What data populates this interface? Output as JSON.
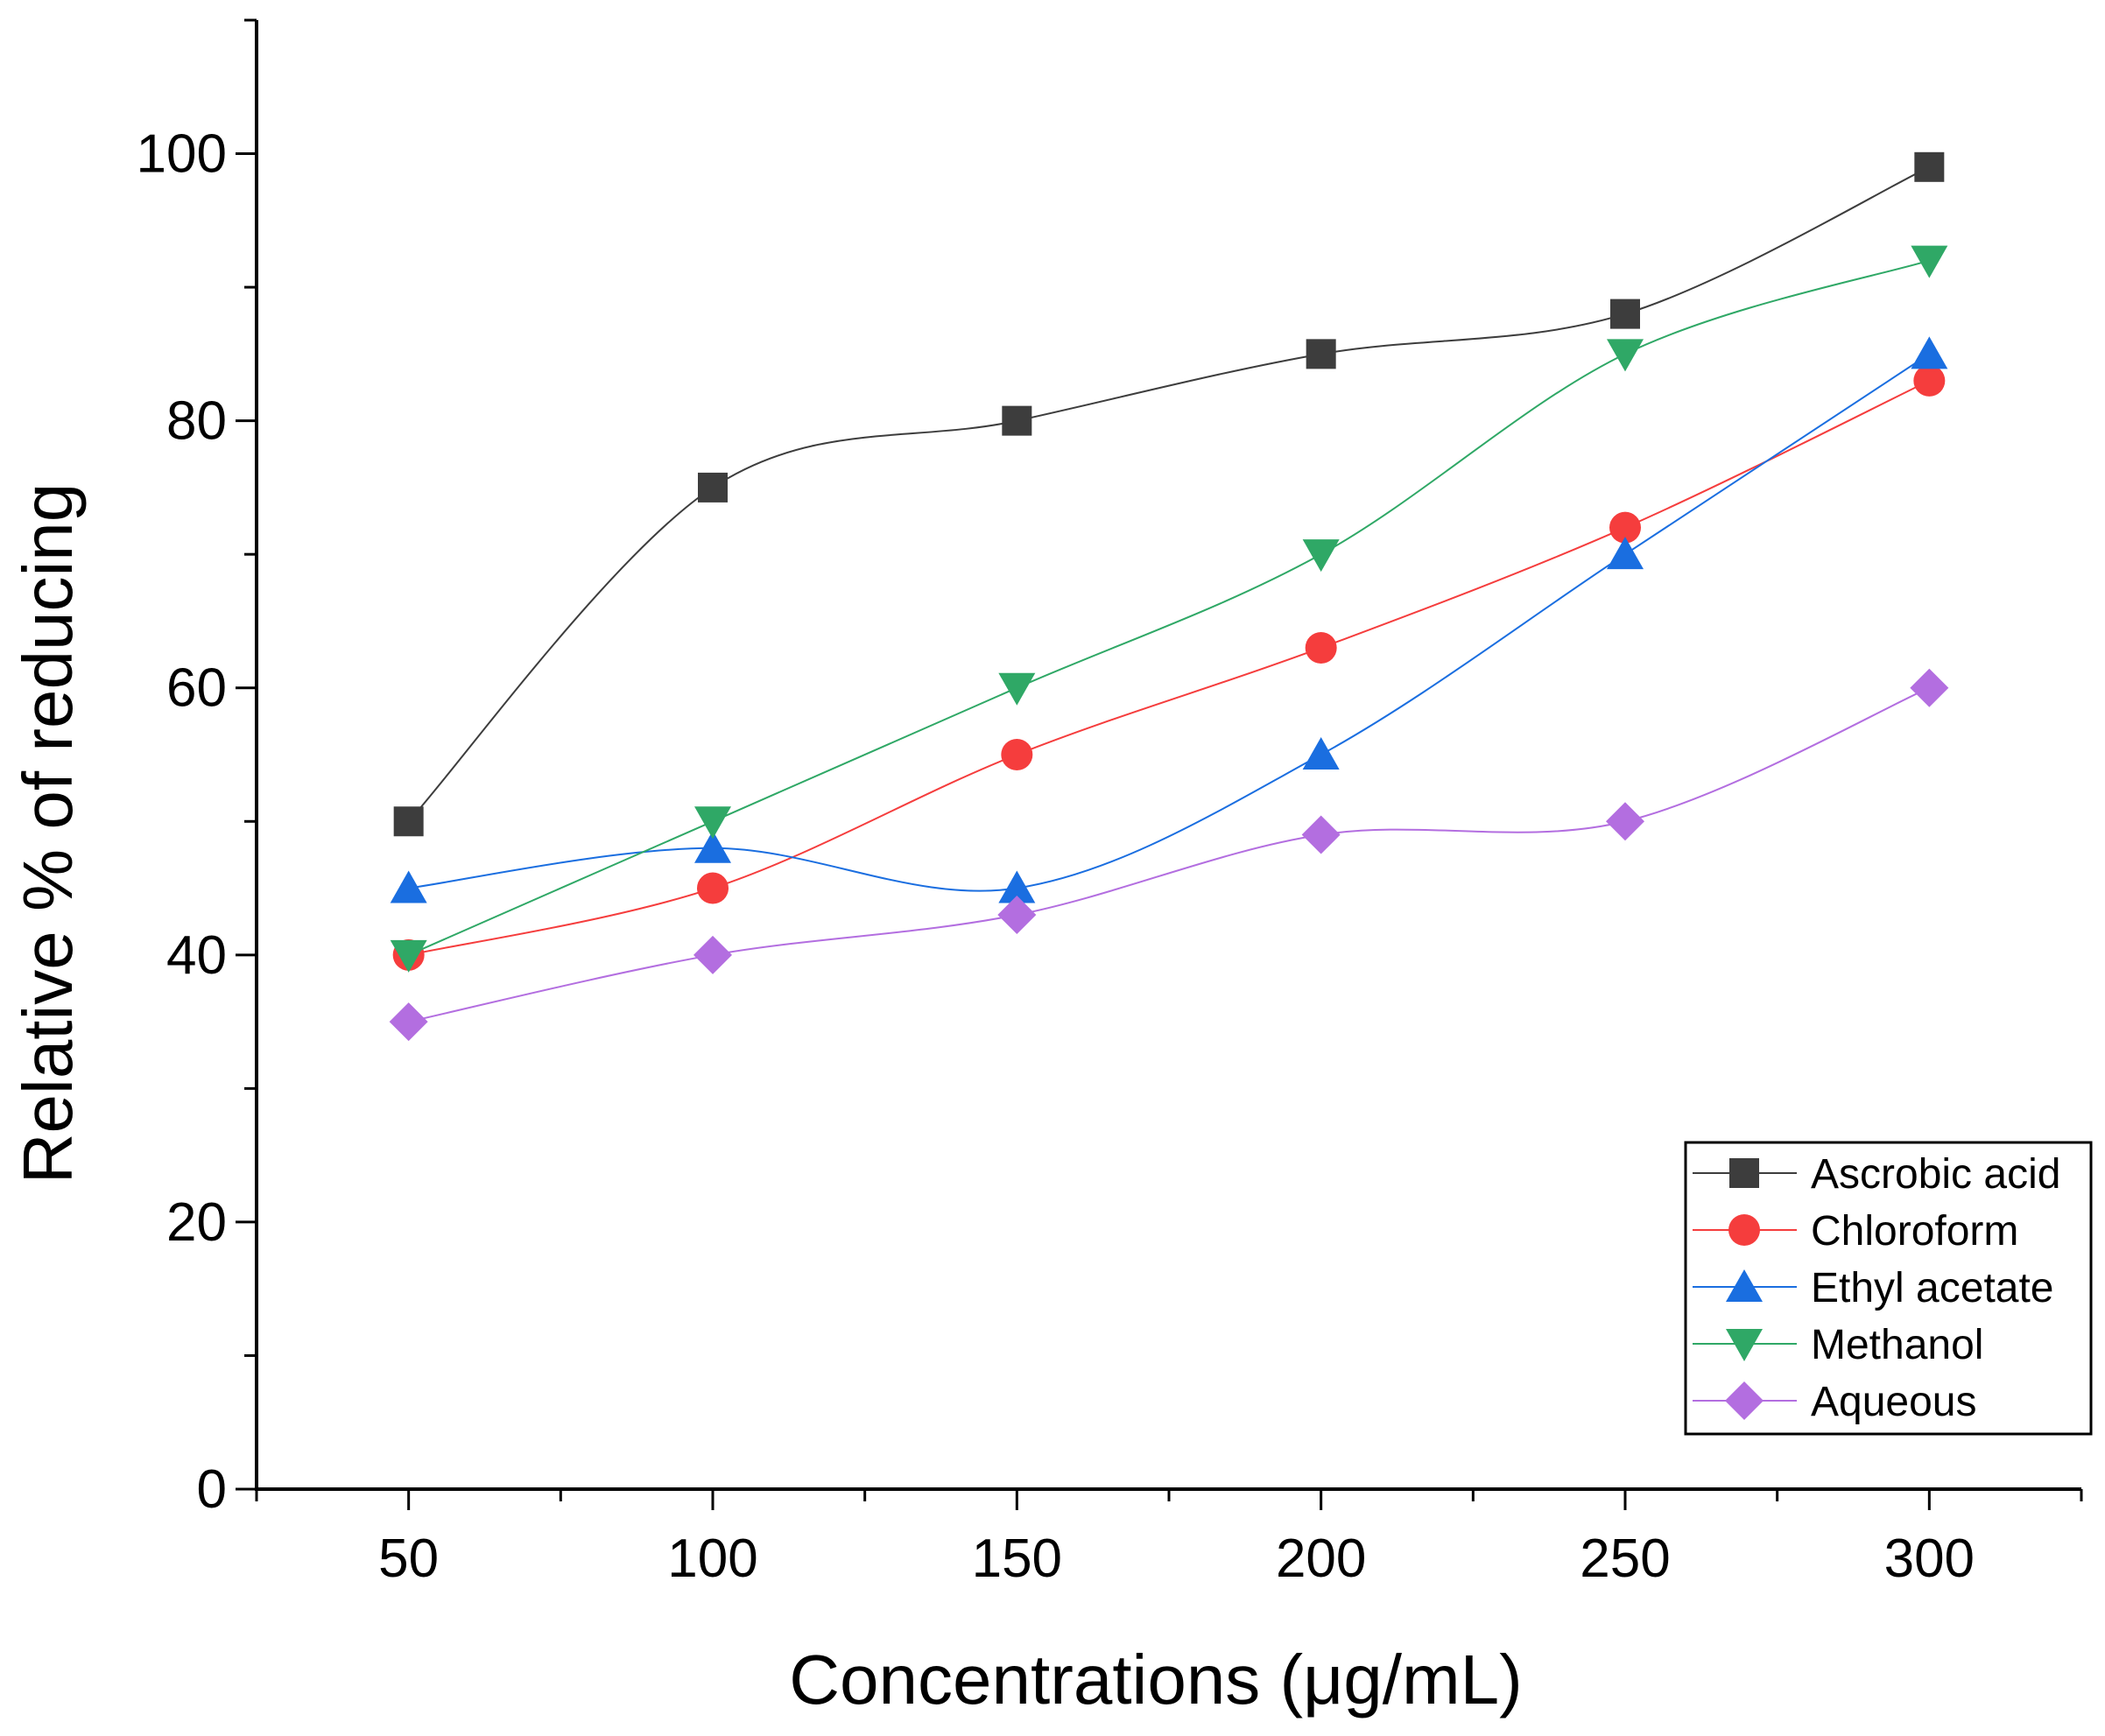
{
  "chart_data": {
    "type": "line",
    "title": "",
    "xlabel": "Concentrations (μg/mL)",
    "ylabel": "Relative % of reducing",
    "x": [
      50,
      100,
      150,
      200,
      250,
      300
    ],
    "x_tick_labels": [
      "50",
      "100",
      "150",
      "200",
      "250",
      "300"
    ],
    "y_tick_labels": [
      "0",
      "20",
      "40",
      "60",
      "80",
      "100"
    ],
    "xlim": [
      25,
      325
    ],
    "ylim": [
      0,
      110
    ],
    "grid": false,
    "legend_position": "bottom-right",
    "series": [
      {
        "name": "Ascrobic acid",
        "color": "#3d3d3d",
        "marker": "square",
        "values": [
          50,
          75,
          80,
          85,
          88,
          99
        ]
      },
      {
        "name": "Chloroform",
        "color": "#f53d3d",
        "marker": "circle",
        "values": [
          40,
          45,
          55,
          63,
          72,
          83
        ]
      },
      {
        "name": "Ethyl acetate",
        "color": "#1a6ee0",
        "marker": "triangle-up",
        "values": [
          45,
          48,
          45,
          55,
          70,
          85
        ]
      },
      {
        "name": "Methanol",
        "color": "#2fa866",
        "marker": "triangle-down",
        "values": [
          40,
          50,
          60,
          70,
          85,
          92
        ]
      },
      {
        "name": "Aqueous",
        "color": "#b36ee0",
        "marker": "diamond",
        "values": [
          35,
          40,
          43,
          49,
          50,
          60
        ]
      }
    ]
  }
}
